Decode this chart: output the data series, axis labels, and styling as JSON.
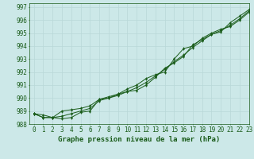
{
  "title": "Graphe pression niveau de la mer (hPa)",
  "background_color": "#cce8e8",
  "grid_color": "#b8d8d8",
  "line_color": "#1a5c1a",
  "xlim": [
    -0.5,
    23
  ],
  "ylim": [
    988.2,
    997.3
  ],
  "yticks": [
    988,
    989,
    990,
    991,
    992,
    993,
    994,
    995,
    996,
    997
  ],
  "xticks": [
    0,
    1,
    2,
    3,
    4,
    5,
    6,
    7,
    8,
    9,
    10,
    11,
    12,
    13,
    14,
    15,
    16,
    17,
    18,
    19,
    20,
    21,
    22,
    23
  ],
  "series": [
    [
      988.8,
      988.5,
      988.5,
      988.4,
      988.5,
      988.9,
      989.0,
      989.9,
      990.0,
      990.2,
      990.5,
      990.6,
      991.0,
      991.6,
      992.3,
      992.7,
      993.2,
      994.1,
      994.5,
      994.9,
      995.1,
      995.8,
      996.3,
      996.8
    ],
    [
      988.8,
      988.5,
      988.5,
      988.6,
      988.8,
      989.0,
      989.2,
      989.8,
      990.0,
      990.3,
      990.5,
      990.8,
      991.2,
      991.7,
      992.2,
      992.8,
      993.3,
      993.9,
      994.4,
      994.9,
      995.2,
      995.6,
      996.1,
      996.7
    ],
    [
      988.8,
      988.7,
      988.5,
      989.0,
      989.1,
      989.2,
      989.4,
      989.9,
      990.1,
      990.3,
      990.7,
      991.0,
      991.5,
      991.8,
      992.0,
      993.0,
      993.8,
      994.0,
      994.6,
      995.0,
      995.3,
      995.5,
      996.0,
      996.6
    ]
  ],
  "title_fontsize": 6.5,
  "tick_fontsize": 5.5,
  "label_color": "#1a5c1a"
}
